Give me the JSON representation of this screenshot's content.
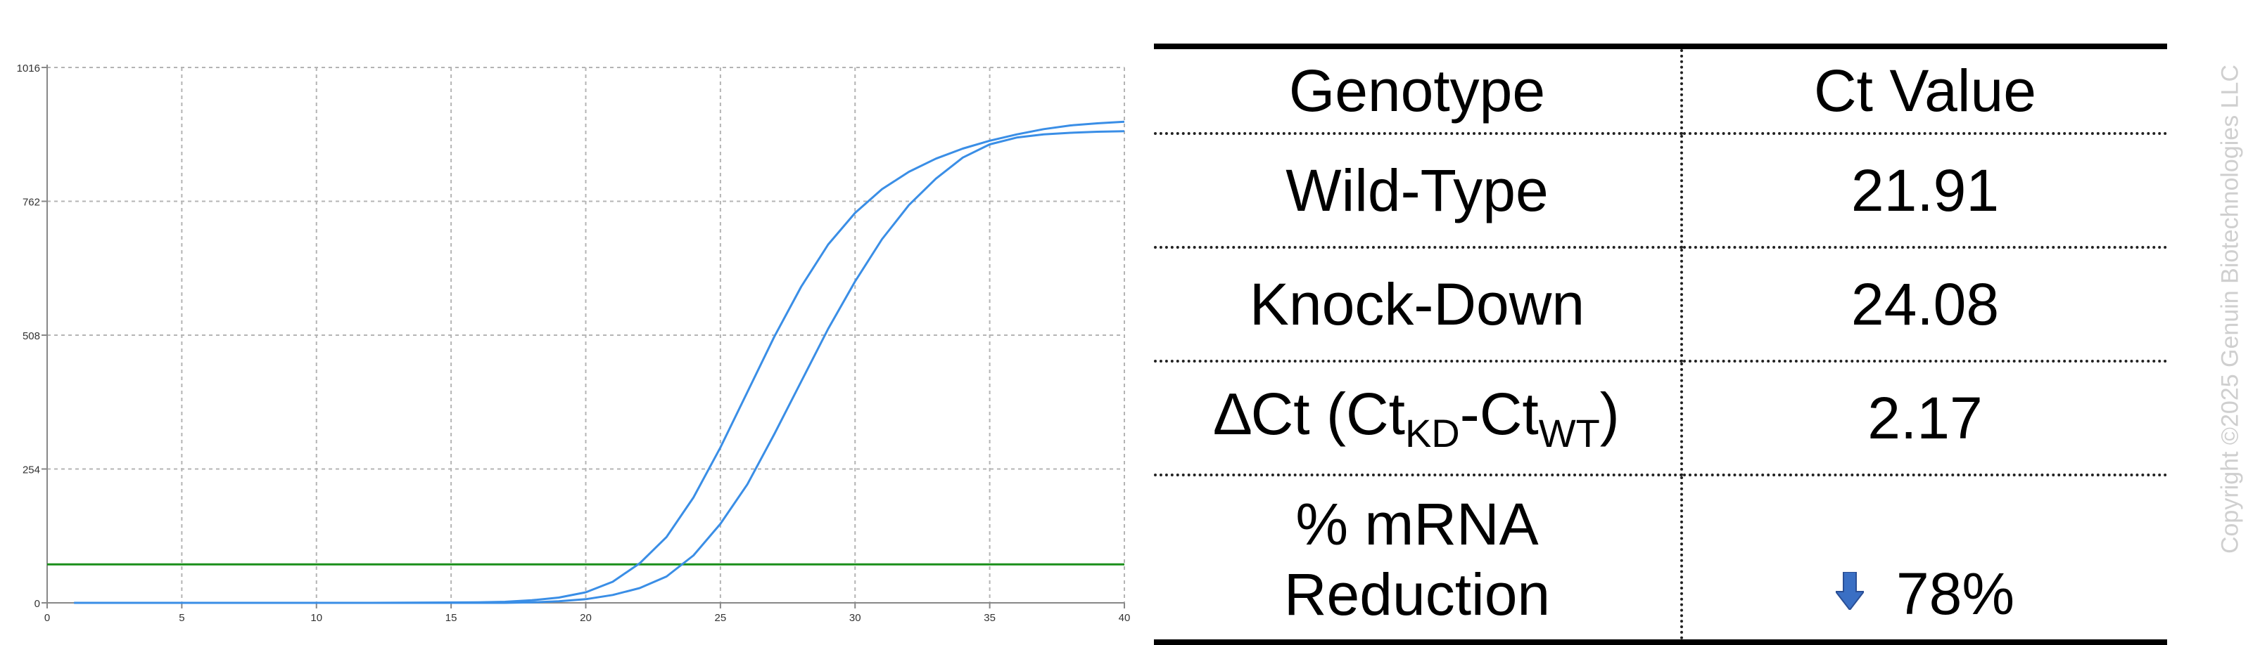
{
  "chart_data": {
    "type": "line",
    "xlim": [
      0,
      40
    ],
    "ylim": [
      0,
      1016
    ],
    "x_ticks": [
      0,
      5,
      10,
      15,
      20,
      25,
      30,
      35,
      40
    ],
    "y_ticks": [
      0,
      254,
      508,
      762,
      1016
    ],
    "grid": true,
    "x": [
      1,
      4,
      8,
      12,
      16,
      17,
      18,
      19,
      20,
      21,
      22,
      23,
      24,
      25,
      26,
      27,
      28,
      29,
      30,
      31,
      32,
      33,
      34,
      35,
      36,
      37,
      38,
      39,
      40
    ],
    "series": [
      {
        "values": [
          0,
          0,
          0,
          0,
          1,
          2,
          5,
          10,
          20,
          40,
          75,
          125,
          200,
          295,
          400,
          505,
          600,
          680,
          740,
          785,
          818,
          843,
          862,
          877,
          889,
          899,
          906,
          910,
          913
        ],
        "color": "#3a8ee6"
      },
      {
        "values": [
          0,
          0,
          0,
          0,
          0,
          0,
          1,
          3,
          7,
          15,
          28,
          50,
          90,
          150,
          225,
          320,
          420,
          520,
          610,
          690,
          755,
          805,
          845,
          870,
          883,
          889,
          892,
          894,
          895
        ],
        "color": "#3a8ee6"
      }
    ],
    "threshold": {
      "value": 73,
      "color": "#1a8f1a"
    }
  },
  "table": {
    "headers": [
      "Genotype",
      "Ct Value"
    ],
    "rows": [
      {
        "label": "Wild-Type",
        "value": "21.91"
      },
      {
        "label": "Knock-Down",
        "value": "24.08"
      }
    ],
    "delta": {
      "prefix": "∆Ct (Ct",
      "sub1": "KD",
      "mid": "-Ct",
      "sub2": "WT",
      "suffix": ")",
      "value": "2.17"
    },
    "reduction": {
      "line1": "% mRNA",
      "line2": "Reduction",
      "value": "78%",
      "arrow_icon": "down-arrow-icon",
      "arrow_color": "#3a6fc4"
    }
  },
  "copyright": "Copyright ©2025 Genuin Biotechnologies LLC"
}
